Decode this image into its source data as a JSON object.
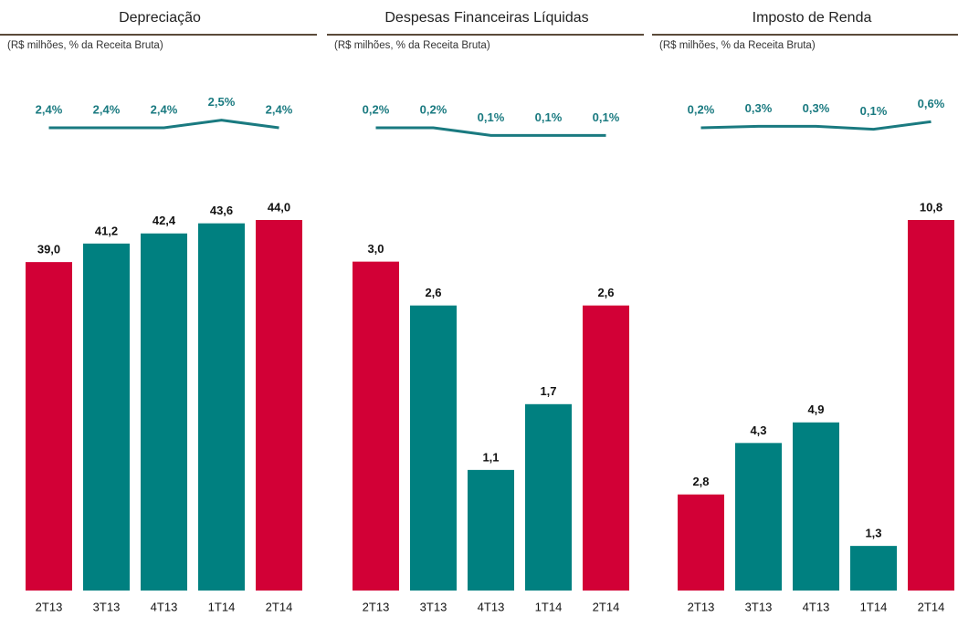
{
  "chart_data": [
    {
      "type": "bar",
      "title": "Depreciação",
      "subtitle": "(R$ milhões, % da Receita Bruta)",
      "categories": [
        "2T13",
        "3T13",
        "4T13",
        "1T14",
        "2T14"
      ],
      "ylim": [
        0,
        44
      ],
      "y2lim": [
        1.8,
        3.0
      ],
      "series": [
        {
          "values": [
            39.0,
            41.2,
            42.4,
            43.6,
            44.0
          ],
          "value_labels": [
            "39,0",
            "41,2",
            "42,4",
            "43,6",
            "44,0"
          ],
          "colors": [
            "#d20036",
            "#008080",
            "#008080",
            "#008080",
            "#d20036"
          ]
        },
        {
          "type": "line",
          "axis": "y2",
          "color": "#1a7a80",
          "values": [
            2.4,
            2.4,
            2.4,
            2.5,
            2.4
          ],
          "value_labels": [
            "2,4%",
            "2,4%",
            "2,4%",
            "2,5%",
            "2,4%"
          ]
        }
      ]
    },
    {
      "type": "bar",
      "title": "Despesas Financeiras Líquidas",
      "subtitle": "(R$ milhões, % da Receita Bruta)",
      "categories": [
        "2T13",
        "3T13",
        "4T13",
        "1T14",
        "2T14"
      ],
      "ylim": [
        0,
        3.38
      ],
      "y2lim": [
        -0.4,
        0.8
      ],
      "series": [
        {
          "values": [
            3.0,
            2.6,
            1.1,
            1.7,
            2.6
          ],
          "value_labels": [
            "3,0",
            "2,6",
            "1,1",
            "1,7",
            "2,6"
          ],
          "colors": [
            "#d20036",
            "#008080",
            "#008080",
            "#008080",
            "#d20036"
          ]
        },
        {
          "type": "line",
          "axis": "y2",
          "color": "#1a7a80",
          "values": [
            0.2,
            0.2,
            0.1,
            0.1,
            0.1
          ],
          "value_labels": [
            "0,2%",
            "0,2%",
            "0,1%",
            "0,1%",
            "0,1%"
          ]
        }
      ]
    },
    {
      "type": "bar",
      "title": "Imposto de Renda",
      "subtitle": "(R$ milhões, % da Receita Bruta)",
      "categories": [
        "2T13",
        "3T13",
        "4T13",
        "1T14",
        "2T14"
      ],
      "ylim": [
        0,
        10.8
      ],
      "y2lim": [
        -2.8,
        3.2
      ],
      "series": [
        {
          "values": [
            2.8,
            4.3,
            4.9,
            1.3,
            10.8
          ],
          "value_labels": [
            "2,8",
            "4,3",
            "4,9",
            "1,3",
            "10,8"
          ],
          "colors": [
            "#d20036",
            "#008080",
            "#008080",
            "#008080",
            "#d20036"
          ]
        },
        {
          "type": "line",
          "axis": "y2",
          "color": "#1a7a80",
          "values": [
            0.2,
            0.3,
            0.3,
            0.1,
            0.6
          ],
          "value_labels": [
            "0,2%",
            "0,3%",
            "0,3%",
            "0,1%",
            "0,6%"
          ]
        }
      ]
    }
  ]
}
